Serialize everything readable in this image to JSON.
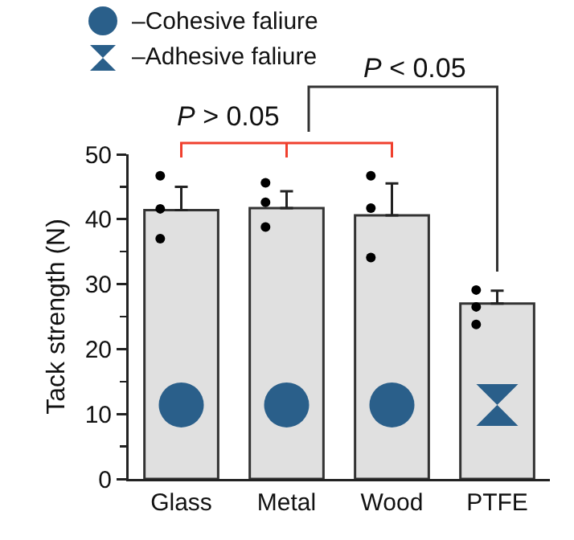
{
  "chart_data": {
    "type": "bar",
    "ylabel": "Tack strength (N)",
    "categories": [
      "Glass",
      "Metal",
      "Wood",
      "PTFE"
    ],
    "values": [
      41.4,
      41.7,
      40.6,
      27.0
    ],
    "color": "#e0e0e0",
    "errors": [
      [
        41.4,
        45.0
      ],
      [
        41.7,
        44.3
      ],
      [
        40.6,
        45.5
      ],
      [
        27.0,
        29.0
      ]
    ],
    "ylim": [
      0,
      50
    ],
    "yticks": [
      0,
      10,
      20,
      30,
      40,
      50
    ],
    "grid": false,
    "series": [
      {
        "type": "scatter",
        "color": "#000000",
        "x": [
          "Glass",
          "Glass",
          "Glass",
          "Metal",
          "Metal",
          "Metal",
          "Wood",
          "Wood",
          "Wood",
          "PTFE",
          "PTFE",
          "PTFE"
        ],
        "values": [
          46.7,
          41.6,
          37.0,
          45.6,
          42.6,
          38.8,
          46.7,
          41.7,
          34.1,
          29.1,
          26.5,
          23.8
        ]
      }
    ],
    "annotations": [
      "–Cohesive faliure",
      "–Adhesive faliure",
      "P > 0.05",
      "P < 0.05"
    ]
  }
}
